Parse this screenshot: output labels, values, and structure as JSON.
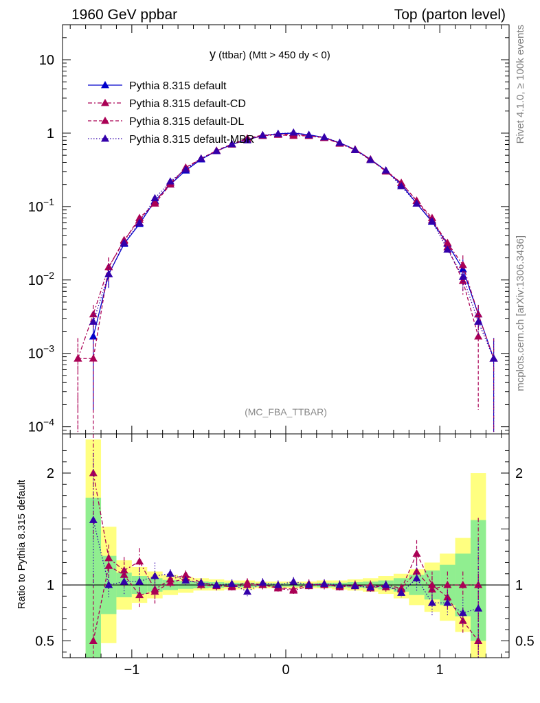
{
  "header": {
    "left": "1960 GeV ppbar",
    "right": "Top (parton level)"
  },
  "side_labels": {
    "rivet": "Rivet 4.1.0, ≥ 100k events",
    "mcplots": "mcplots.cern.ch [arXiv:1306.3436]"
  },
  "colors": {
    "default": "#0000cc",
    "cd": "#aa0055",
    "dl": "#aa0055",
    "mbr": "#3300aa",
    "band_outer": "#ffff80",
    "band_inner": "#90ee90"
  },
  "chart_data": [
    {
      "type": "line",
      "panel": "main",
      "title_main": "y",
      "title_rest": " (ttbar) (Mtt > 450 dy < 0)",
      "watermark": "(MC_FBA_TTBAR)",
      "xlim": [
        -1.45,
        1.45
      ],
      "ylim_log": [
        8e-05,
        30
      ],
      "y_scale": "log",
      "y_ticks": [
        {
          "value": 10,
          "base": "10",
          "exp": ""
        },
        {
          "value": 1,
          "base": "1",
          "exp": ""
        },
        {
          "value": 0.1,
          "base": "10",
          "exp": "−1"
        },
        {
          "value": 0.01,
          "base": "10",
          "exp": "−2"
        },
        {
          "value": 0.001,
          "base": "10",
          "exp": "−3"
        },
        {
          "value": 0.0001,
          "base": "10",
          "exp": "−4"
        }
      ],
      "legend_position": "top-left",
      "series": [
        {
          "name": "Pythia 8.315 default",
          "style": "solid",
          "color_key": "default",
          "x": [
            -1.25,
            -1.15,
            -1.05,
            -0.95,
            -0.85,
            -0.75,
            -0.65,
            -0.55,
            -0.45,
            -0.35,
            -0.25,
            -0.15,
            -0.05,
            0.05,
            0.15,
            0.25,
            0.35,
            0.45,
            0.55,
            0.65,
            0.75,
            0.85,
            0.95,
            1.05,
            1.15,
            1.25,
            1.35
          ],
          "y": [
            0.0017,
            0.012,
            0.031,
            0.058,
            0.12,
            0.2,
            0.31,
            0.44,
            0.57,
            0.7,
            0.82,
            0.92,
            0.98,
            1.0,
            0.95,
            0.87,
            0.74,
            0.6,
            0.44,
            0.31,
            0.2,
            0.11,
            0.062,
            0.031,
            0.014,
            0.0034,
            0.00085
          ]
        },
        {
          "name": "Pythia 8.315 default-CD",
          "style": "dashdot",
          "color_key": "cd",
          "x": [
            -1.35,
            -1.25,
            -1.15,
            -1.05,
            -0.95,
            -0.85,
            -0.75,
            -0.65,
            -0.55,
            -0.45,
            -0.35,
            -0.25,
            -0.15,
            -0.05,
            0.05,
            0.15,
            0.25,
            0.35,
            0.45,
            0.55,
            0.65,
            0.75,
            0.85,
            0.95,
            1.05,
            1.15,
            1.25,
            1.35
          ],
          "y": [
            0.00085,
            0.0034,
            0.015,
            0.035,
            0.066,
            0.115,
            0.21,
            0.33,
            0.45,
            0.57,
            0.7,
            0.82,
            0.92,
            0.95,
            0.92,
            0.92,
            0.86,
            0.72,
            0.59,
            0.43,
            0.31,
            0.21,
            0.12,
            0.065,
            0.032,
            0.016,
            0.0034,
            0.00085
          ]
        },
        {
          "name": "Pythia 8.315 default-DL",
          "style": "dashed",
          "color_key": "dl",
          "x": [
            -1.35,
            -1.25,
            -1.15,
            -1.05,
            -0.95,
            -0.85,
            -0.75,
            -0.65,
            -0.55,
            -0.45,
            -0.35,
            -0.25,
            -0.15,
            -0.05,
            0.05,
            0.15,
            0.25,
            0.35,
            0.45,
            0.55,
            0.65,
            0.75,
            0.85,
            0.95,
            1.05,
            1.15,
            1.25
          ],
          "y": [
            0.00085,
            0.00085,
            0.015,
            0.034,
            0.07,
            0.11,
            0.2,
            0.34,
            0.45,
            0.58,
            0.71,
            0.85,
            0.94,
            0.96,
            0.96,
            0.92,
            0.87,
            0.73,
            0.6,
            0.44,
            0.3,
            0.21,
            0.12,
            0.07,
            0.028,
            0.0097,
            0.0017
          ]
        },
        {
          "name": "Pythia 8.315 default-MBR",
          "style": "dotted",
          "color_key": "mbr",
          "x": [
            -1.25,
            -1.15,
            -1.05,
            -0.95,
            -0.85,
            -0.75,
            -0.65,
            -0.55,
            -0.45,
            -0.35,
            -0.25,
            -0.15,
            -0.05,
            0.05,
            0.15,
            0.25,
            0.35,
            0.45,
            0.55,
            0.65,
            0.75,
            0.85,
            0.95,
            1.05,
            1.15,
            1.25,
            1.35
          ],
          "y": [
            0.0027,
            0.012,
            0.032,
            0.06,
            0.13,
            0.22,
            0.32,
            0.45,
            0.57,
            0.71,
            0.8,
            0.94,
            0.98,
            1.02,
            0.94,
            0.88,
            0.74,
            0.59,
            0.43,
            0.31,
            0.19,
            0.11,
            0.063,
            0.026,
            0.011,
            0.0027,
            0.00085
          ]
        }
      ]
    },
    {
      "type": "line",
      "panel": "ratio",
      "ylabel": "Ratio to Pythia 8.315 default",
      "xlim": [
        -1.45,
        1.45
      ],
      "ylim": [
        0.35,
        2.35
      ],
      "y_ticks": [
        2,
        1,
        0.5
      ],
      "y_tick_labels": [
        "2",
        "1",
        "0.5"
      ],
      "x_ticks": [
        -1,
        0,
        1
      ],
      "x_tick_labels": [
        "−1",
        "0",
        "1"
      ],
      "band_edges": [
        -1.3,
        -1.2,
        -1.1,
        -1.0,
        -0.9,
        -0.8,
        -0.7,
        -0.6,
        -0.5,
        -0.4,
        -0.3,
        -0.2,
        -0.1,
        0.0,
        0.1,
        0.2,
        0.3,
        0.4,
        0.5,
        0.6,
        0.7,
        0.8,
        0.9,
        1.0,
        1.1,
        1.2,
        1.3
      ],
      "band_outer_low": [
        0.3,
        0.48,
        0.78,
        0.84,
        0.88,
        0.91,
        0.93,
        0.95,
        0.95,
        0.96,
        0.96,
        0.97,
        0.97,
        0.97,
        0.97,
        0.97,
        0.96,
        0.95,
        0.94,
        0.92,
        0.88,
        0.82,
        0.76,
        0.68,
        0.58,
        0.3
      ],
      "band_outer_high": [
        2.3,
        1.52,
        1.22,
        1.16,
        1.12,
        1.09,
        1.07,
        1.06,
        1.05,
        1.04,
        1.04,
        1.03,
        1.03,
        1.03,
        1.03,
        1.04,
        1.04,
        1.05,
        1.06,
        1.08,
        1.1,
        1.14,
        1.2,
        1.28,
        1.42,
        2.0
      ],
      "band_inner_low": [
        0.3,
        0.74,
        0.89,
        0.92,
        0.94,
        0.955,
        0.965,
        0.97,
        0.975,
        0.98,
        0.98,
        0.985,
        0.985,
        0.985,
        0.985,
        0.98,
        0.98,
        0.975,
        0.97,
        0.96,
        0.94,
        0.91,
        0.87,
        0.82,
        0.72,
        0.5
      ],
      "band_inner_high": [
        1.78,
        1.26,
        1.11,
        1.08,
        1.06,
        1.045,
        1.035,
        1.03,
        1.025,
        1.02,
        1.02,
        1.015,
        1.015,
        1.015,
        1.015,
        1.02,
        1.02,
        1.025,
        1.03,
        1.04,
        1.06,
        1.09,
        1.13,
        1.18,
        1.28,
        1.58
      ],
      "series": [
        {
          "name": "Pythia 8.315 default-CD",
          "style": "dashdot",
          "color_key": "cd",
          "x": [
            -1.25,
            -1.15,
            -1.05,
            -0.95,
            -0.85,
            -0.75,
            -0.65,
            -0.55,
            -0.45,
            -0.35,
            -0.25,
            -0.15,
            -0.05,
            0.05,
            0.15,
            0.25,
            0.35,
            0.45,
            0.55,
            0.65,
            0.75,
            0.85,
            0.95,
            1.05,
            1.15,
            1.25
          ],
          "y": [
            2.0,
            1.24,
            1.13,
            1.21,
            0.96,
            1.05,
            1.09,
            1.02,
            1.0,
            0.98,
            1.0,
            1.0,
            0.97,
            0.95,
            0.99,
            1.01,
            0.98,
            1.0,
            0.97,
            1.0,
            0.97,
            1.12,
            0.96,
            1.0,
            1.0,
            1.0
          ]
        },
        {
          "name": "Pythia 8.315 default-DL",
          "style": "dashed",
          "color_key": "dl",
          "x": [
            -1.25,
            -1.15,
            -1.05,
            -0.95,
            -0.85,
            -0.75,
            -0.65,
            -0.55,
            -0.45,
            -0.35,
            -0.25,
            -0.15,
            -0.05,
            0.05,
            0.15,
            0.25,
            0.35,
            0.45,
            0.55,
            0.65,
            0.75,
            0.85,
            0.95,
            1.05,
            1.15,
            1.25
          ],
          "y": [
            0.5,
            1.17,
            1.09,
            0.91,
            0.94,
            1.02,
            1.06,
            1.0,
            0.99,
            0.99,
            1.02,
            1.0,
            0.98,
            0.96,
            1.01,
            1.0,
            0.99,
            0.99,
            1.0,
            0.98,
            0.96,
            1.28,
            1.0,
            0.89,
            0.68,
            0.5
          ]
        },
        {
          "name": "Pythia 8.315 default-MBR",
          "style": "dotted",
          "color_key": "mbr",
          "x": [
            -1.25,
            -1.15,
            -1.05,
            -0.95,
            -0.85,
            -0.75,
            -0.65,
            -0.55,
            -0.45,
            -0.35,
            -0.25,
            -0.15,
            -0.05,
            0.05,
            0.15,
            0.25,
            0.35,
            0.45,
            0.55,
            0.65,
            0.75,
            0.85,
            0.95,
            1.05,
            1.15,
            1.25
          ],
          "y": [
            1.58,
            1.0,
            1.03,
            1.03,
            1.08,
            1.1,
            1.04,
            1.02,
            1.0,
            1.01,
            0.94,
            1.02,
            1.0,
            1.03,
            1.0,
            1.01,
            1.0,
            0.99,
            0.98,
            1.0,
            0.93,
            1.06,
            0.84,
            0.84,
            0.75,
            0.79
          ]
        }
      ]
    }
  ]
}
